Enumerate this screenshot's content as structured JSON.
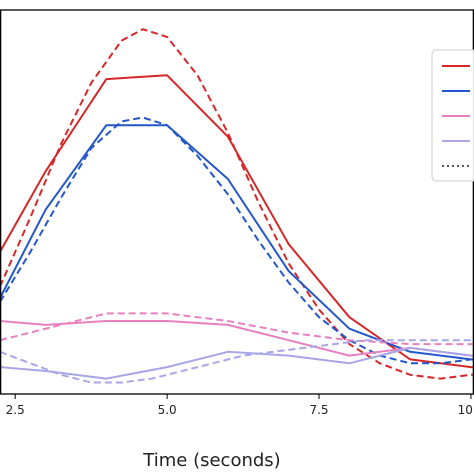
{
  "chart_data": {
    "type": "line",
    "title": "",
    "xlabel": "Time (seconds)",
    "ylabel": "",
    "xlim": [
      2.25,
      10.05
    ],
    "ylim": [
      0,
      100
    ],
    "x_ticks": [
      {
        "value": 2.5,
        "label": "2.5"
      },
      {
        "value": 5.0,
        "label": "5.0"
      },
      {
        "value": 7.5,
        "label": "7.5"
      },
      {
        "value": 10.0,
        "label": "10.0"
      }
    ],
    "grid": false,
    "legend": {
      "position": "right"
    },
    "series": [
      {
        "color": "#d62728",
        "style": "solid",
        "x": [
          2.25,
          3.0,
          4.0,
          5.0,
          6.0,
          7.0,
          8.0,
          9.0,
          10.0,
          10.05
        ],
        "y": [
          37,
          58,
          82,
          83,
          67,
          39,
          20,
          9,
          7,
          7
        ]
      },
      {
        "color": "#d62728",
        "style": "dashed",
        "x": [
          2.25,
          2.75,
          3.25,
          3.75,
          4.25,
          4.6,
          5.0,
          5.5,
          6.0,
          6.5,
          7.0,
          7.5,
          8.0,
          8.5,
          9.0,
          9.5,
          10.0,
          10.05
        ],
        "y": [
          28,
          46,
          65,
          81,
          92,
          95,
          93,
          83,
          68,
          50,
          34,
          22,
          13,
          8,
          5,
          4,
          5,
          5
        ]
      },
      {
        "color": "#2357c9",
        "style": "solid",
        "x": [
          2.25,
          3.0,
          4.0,
          5.0,
          6.0,
          7.0,
          8.0,
          9.0,
          10.0,
          10.05
        ],
        "y": [
          25,
          48,
          70,
          70,
          56,
          32,
          17,
          11,
          9,
          9
        ]
      },
      {
        "color": "#2357c9",
        "style": "dashed",
        "x": [
          2.25,
          2.75,
          3.25,
          3.75,
          4.25,
          4.6,
          5.0,
          5.5,
          6.0,
          6.5,
          7.0,
          7.5,
          8.0,
          8.5,
          9.0,
          9.5,
          10.0,
          10.05
        ],
        "y": [
          24,
          37,
          51,
          64,
          71,
          72,
          70,
          62,
          52,
          40,
          29,
          20,
          14,
          10,
          8,
          8,
          9,
          9
        ]
      },
      {
        "color": "#e880c0",
        "style": "solid",
        "x": [
          2.25,
          3.0,
          4.0,
          5.0,
          6.0,
          7.0,
          8.0,
          9.0,
          10.0,
          10.05
        ],
        "y": [
          19,
          18,
          19,
          19,
          18,
          14,
          10,
          12,
          10,
          10
        ]
      },
      {
        "color": "#e880c0",
        "style": "dashed",
        "x": [
          2.25,
          3.0,
          4.0,
          5.0,
          6.0,
          7.0,
          8.0,
          9.0,
          10.0,
          10.05
        ],
        "y": [
          14,
          17,
          21,
          21,
          19,
          16,
          14,
          13,
          13,
          13
        ]
      },
      {
        "color": "#a8a6e6",
        "style": "solid",
        "x": [
          2.25,
          3.0,
          4.0,
          5.0,
          6.0,
          7.0,
          8.0,
          9.0,
          10.0,
          10.05
        ],
        "y": [
          7,
          6,
          4,
          7,
          11,
          10,
          8,
          12,
          10,
          10
        ]
      },
      {
        "color": "#a8a6e6",
        "style": "dashed",
        "x": [
          2.25,
          2.75,
          3.25,
          3.75,
          4.25,
          4.75,
          5.25,
          5.75,
          6.25,
          6.75,
          7.25,
          7.75,
          8.25,
          8.75,
          9.25,
          9.75,
          10.05
        ],
        "y": [
          11,
          8,
          5,
          3,
          3,
          4,
          6,
          8,
          10,
          11,
          12,
          13,
          14,
          14,
          14,
          14,
          14
        ]
      }
    ],
    "legend_entries": [
      {
        "color": "#d62728",
        "style": "solid",
        "label": ""
      },
      {
        "color": "#2357c9",
        "style": "solid",
        "label": ""
      },
      {
        "color": "#e880c0",
        "style": "solid",
        "label": ""
      },
      {
        "color": "#a8a6e6",
        "style": "solid",
        "label": ""
      },
      {
        "color": "#555555",
        "style": "dotted",
        "label": ""
      }
    ]
  }
}
